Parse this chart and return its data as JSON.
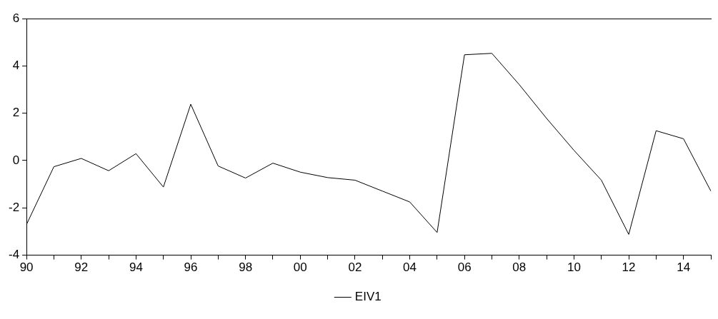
{
  "chart_data": {
    "type": "line",
    "categories": [
      "90",
      null,
      "92",
      null,
      "94",
      null,
      "96",
      null,
      "98",
      null,
      "00",
      null,
      "02",
      null,
      "04",
      null,
      "06",
      null,
      "08",
      null,
      "10",
      null,
      "12",
      null,
      "14",
      null
    ],
    "series": [
      {
        "name": "EIV1",
        "color": "#000000",
        "values": [
          -2.7,
          -0.26,
          0.09,
          -0.43,
          0.29,
          -1.12,
          2.38,
          -0.23,
          -0.74,
          -0.11,
          -0.49,
          -0.72,
          -0.83,
          -1.29,
          -1.75,
          -3.04,
          4.47,
          4.53,
          3.21,
          1.78,
          0.43,
          -0.83,
          -3.12,
          1.26,
          0.92,
          -1.29
        ]
      }
    ],
    "ylim": [
      -4,
      6
    ],
    "yticks": [
      -4,
      -2,
      0,
      2,
      4,
      6
    ],
    "grid": false,
    "legend": "bottom",
    "marker": "none",
    "line_style": "solid"
  }
}
